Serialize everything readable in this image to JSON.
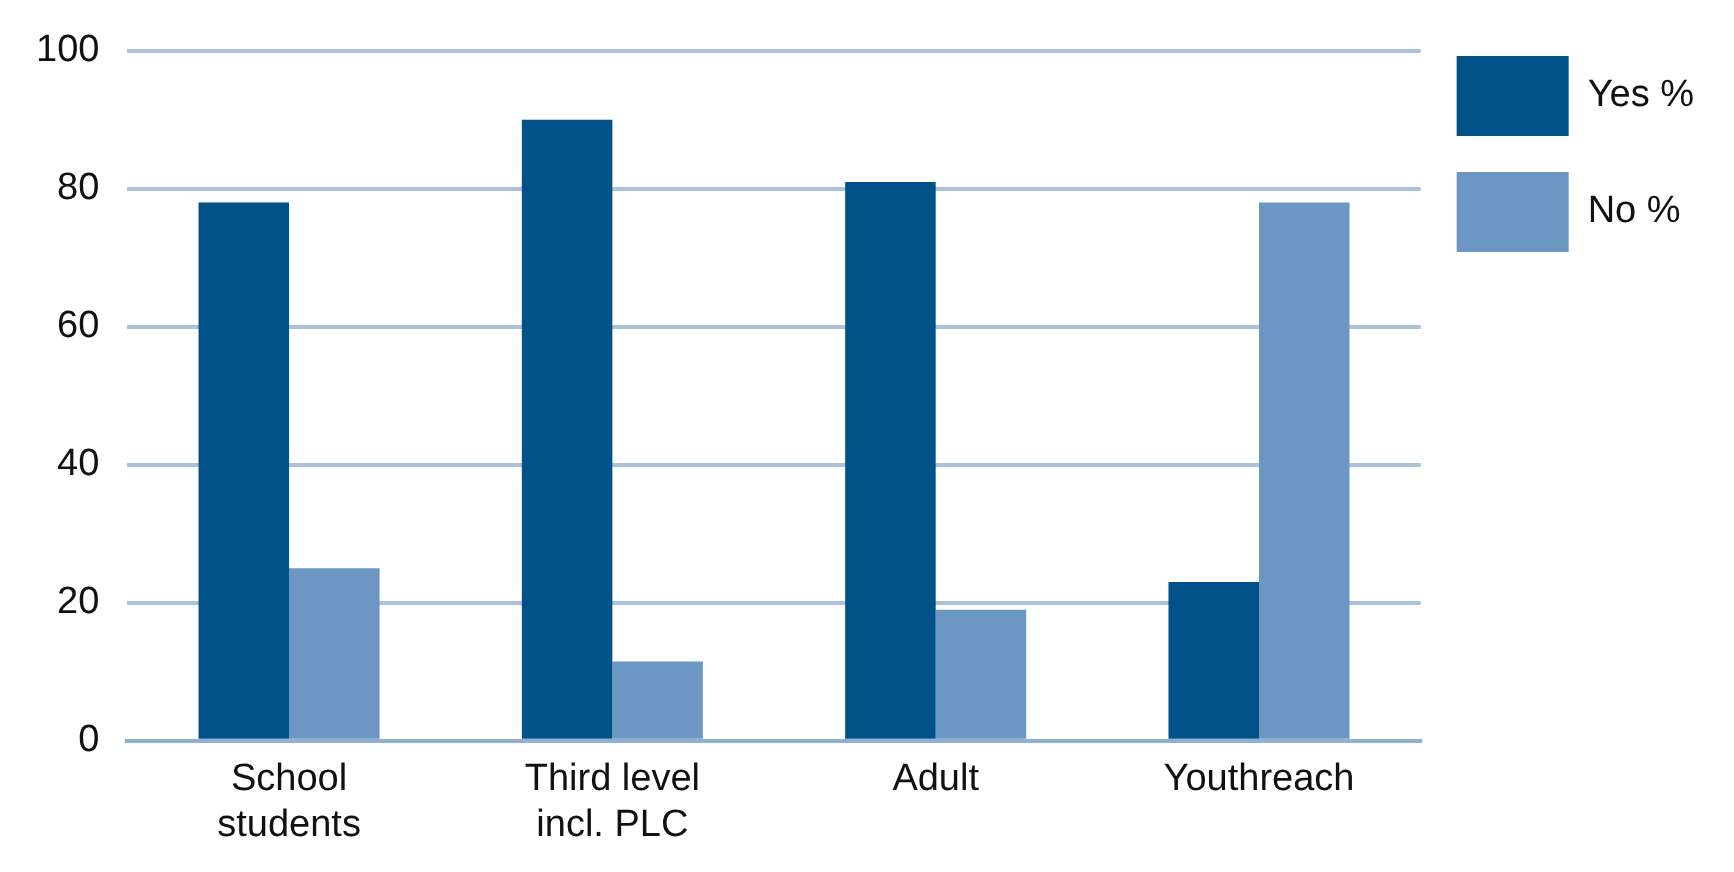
{
  "chart_data": {
    "type": "bar",
    "categories": [
      "School students",
      "Third level incl. PLC",
      "Adult",
      "Youthreach"
    ],
    "series": [
      {
        "name": "Yes %",
        "color": "#005288",
        "values": [
          78,
          90,
          81,
          23
        ]
      },
      {
        "name": "No %",
        "color": "#6b97c2",
        "values": [
          25,
          11.5,
          19,
          78
        ]
      }
    ],
    "ylim": [
      0,
      100
    ],
    "yticks": [
      0,
      20,
      40,
      60,
      80,
      100
    ],
    "grid": "y",
    "legend": "top right"
  }
}
